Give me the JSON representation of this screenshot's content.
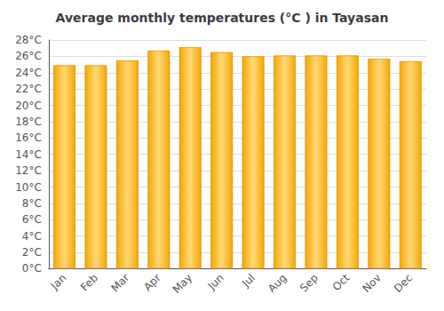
{
  "chart_data": {
    "type": "bar",
    "title": "Average monthly temperatures (°C ) in Tayasan",
    "categories": [
      "Jan",
      "Feb",
      "Mar",
      "Apr",
      "May",
      "Jun",
      "Jul",
      "Aug",
      "Sep",
      "Oct",
      "Nov",
      "Dec"
    ],
    "values": [
      24.9,
      24.9,
      25.5,
      26.7,
      27.1,
      26.5,
      26.0,
      26.1,
      26.1,
      26.1,
      25.7,
      25.4
    ],
    "color": "#F5A800",
    "ylim": [
      0,
      28
    ],
    "yticks": [
      {
        "value": 0,
        "label": "0°C"
      },
      {
        "value": 2,
        "label": "2°C"
      },
      {
        "value": 4,
        "label": "4°C"
      },
      {
        "value": 6,
        "label": "6°C"
      },
      {
        "value": 8,
        "label": "8°C"
      },
      {
        "value": 10,
        "label": "10°C"
      },
      {
        "value": 12,
        "label": "12°C"
      },
      {
        "value": 14,
        "label": "14°C"
      },
      {
        "value": 16,
        "label": "16°C"
      },
      {
        "value": 18,
        "label": "18°C"
      },
      {
        "value": 20,
        "label": "20°C"
      },
      {
        "value": 22,
        "label": "22°C"
      },
      {
        "value": 24,
        "label": "24°C"
      },
      {
        "value": 26,
        "label": "26°C"
      },
      {
        "value": 28,
        "label": "28°C"
      }
    ],
    "grid": true
  }
}
